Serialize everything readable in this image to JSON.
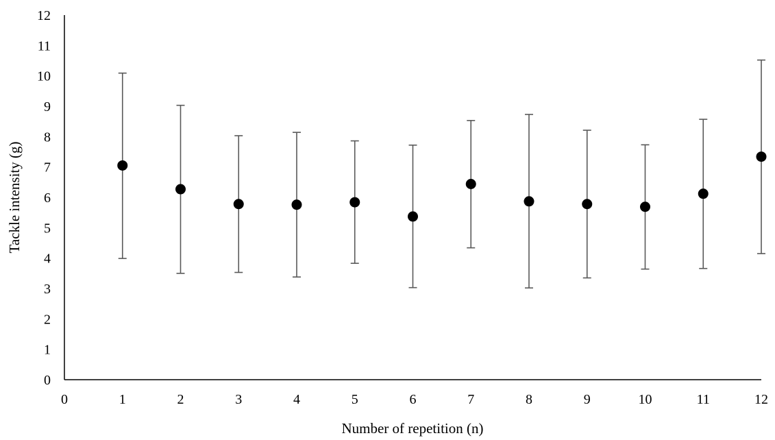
{
  "chart_data": {
    "type": "scatter",
    "title": "",
    "xlabel": "Number of repetition (n)",
    "ylabel": "Tackle intensity (g)",
    "xlim": [
      0,
      12
    ],
    "ylim": [
      0,
      12
    ],
    "x_ticks": [
      0,
      1,
      2,
      3,
      4,
      5,
      6,
      7,
      8,
      9,
      10,
      11,
      12
    ],
    "y_ticks": [
      0,
      1,
      2,
      3,
      4,
      5,
      6,
      7,
      8,
      9,
      10,
      11,
      12
    ],
    "grid": false,
    "legend": "none",
    "series": [
      {
        "marker": "circle",
        "color": "#000000",
        "error_bar_color": "#595959",
        "x": [
          1,
          2,
          3,
          4,
          5,
          6,
          7,
          8,
          9,
          10,
          11,
          12
        ],
        "y": [
          7.05,
          6.27,
          5.78,
          5.76,
          5.84,
          5.37,
          6.44,
          5.87,
          5.78,
          5.69,
          6.12,
          7.34
        ],
        "y_lower": [
          3.99,
          3.5,
          3.53,
          3.38,
          3.83,
          3.03,
          4.34,
          3.02,
          3.35,
          3.64,
          3.66,
          4.15
        ],
        "y_upper": [
          10.09,
          9.03,
          8.03,
          8.14,
          7.86,
          7.72,
          8.53,
          8.73,
          8.21,
          7.73,
          8.57,
          10.52
        ]
      }
    ]
  }
}
